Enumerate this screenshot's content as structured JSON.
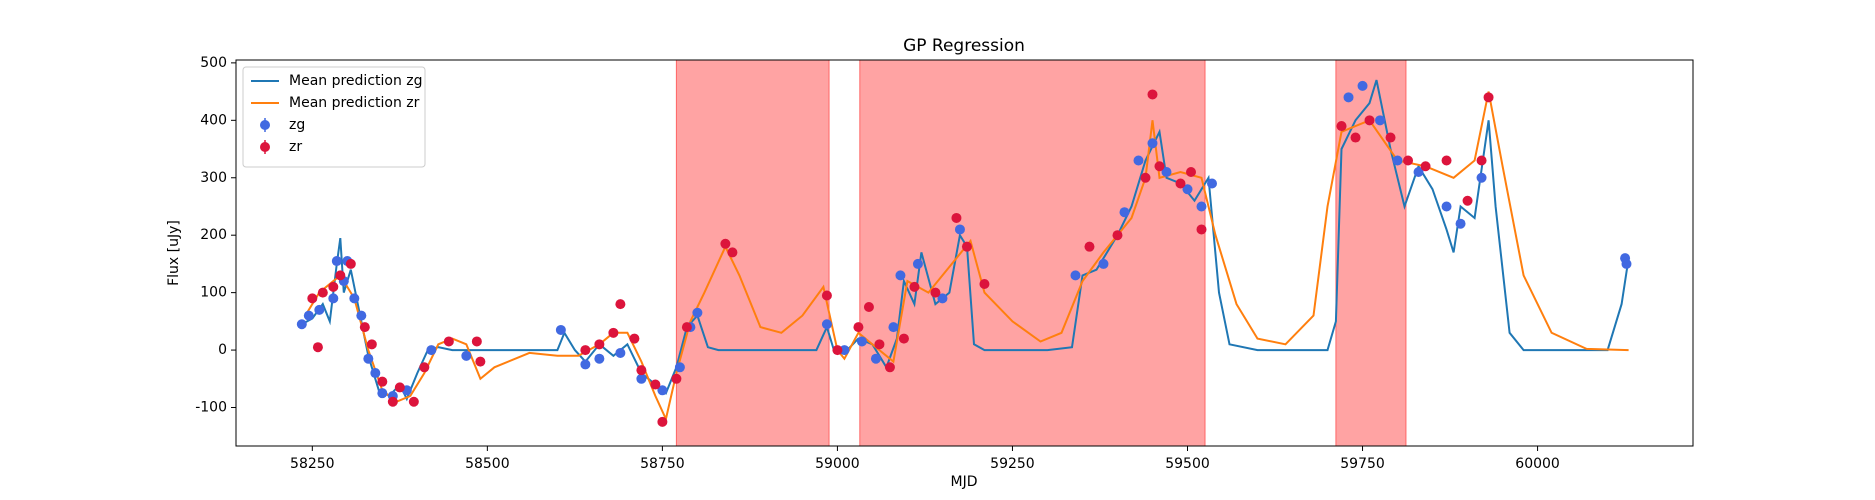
{
  "chart_data": {
    "type": "line",
    "title": "GP Regression",
    "x_label": "MJD",
    "y_label": "Flux [uJy]",
    "xlim": [
      58141,
      60222
    ],
    "ylim": [
      -167,
      505
    ],
    "xticks": [
      58250,
      58500,
      58750,
      59000,
      59250,
      59500,
      59750,
      60000
    ],
    "yticks": [
      -100,
      0,
      100,
      200,
      300,
      400,
      500
    ],
    "legend": "upper left",
    "shaded_regions": [
      [
        58770,
        58988
      ],
      [
        59032,
        59525
      ],
      [
        59712,
        59812
      ]
    ],
    "shade_color": "#ff6666",
    "series": [
      {
        "name": "Mean prediction zg",
        "kind": "line",
        "color": "#1f77b4",
        "x": [
          58235,
          58250,
          58265,
          58275,
          58285,
          58290,
          58295,
          58305,
          58315,
          58330,
          58345,
          58360,
          58375,
          58385,
          58400,
          58415,
          58430,
          58450,
          58480,
          58500,
          58600,
          58610,
          58625,
          58640,
          58660,
          58680,
          58700,
          58720,
          58740,
          58755,
          58770,
          58785,
          58800,
          58815,
          58830,
          58900,
          58970,
          58985,
          58995,
          59010,
          59030,
          59050,
          59070,
          59085,
          59095,
          59110,
          59120,
          59140,
          59160,
          59175,
          59185,
          59195,
          59210,
          59300,
          59335,
          59350,
          59370,
          59400,
          59420,
          59440,
          59460,
          59470,
          59490,
          59510,
          59530,
          59545,
          59560,
          59600,
          59700,
          59712,
          59720,
          59740,
          59760,
          59770,
          59790,
          59810,
          59830,
          59850,
          59870,
          59880,
          59890,
          59910,
          59930,
          59940,
          59960,
          59980,
          60100,
          60120,
          60130
        ],
        "values": [
          45,
          55,
          80,
          50,
          150,
          195,
          100,
          140,
          80,
          -10,
          -70,
          -80,
          -60,
          -85,
          -40,
          0,
          5,
          0,
          0,
          0,
          0,
          30,
          0,
          -20,
          10,
          -10,
          10,
          -40,
          -60,
          -75,
          -30,
          40,
          60,
          5,
          0,
          0,
          0,
          40,
          0,
          -5,
          20,
          10,
          -30,
          20,
          120,
          80,
          170,
          80,
          100,
          200,
          180,
          10,
          0,
          0,
          5,
          130,
          140,
          200,
          250,
          330,
          380,
          300,
          290,
          260,
          300,
          100,
          10,
          0,
          0,
          50,
          350,
          400,
          430,
          470,
          350,
          250,
          320,
          280,
          210,
          170,
          250,
          230,
          400,
          250,
          30,
          0,
          0,
          80,
          160
        ]
      },
      {
        "name": "Mean prediction zr",
        "kind": "line",
        "color": "#ff7f0e",
        "x": [
          58240,
          58260,
          58290,
          58310,
          58330,
          58350,
          58370,
          58390,
          58410,
          58430,
          58450,
          58470,
          58490,
          58510,
          58560,
          58600,
          58630,
          58660,
          58680,
          58700,
          58720,
          58740,
          58755,
          58770,
          58790,
          58810,
          58840,
          58860,
          58890,
          58920,
          58950,
          58980,
          59000,
          59010,
          59030,
          59060,
          59080,
          59100,
          59130,
          59170,
          59190,
          59210,
          59250,
          59290,
          59320,
          59350,
          59380,
          59420,
          59440,
          59450,
          59460,
          59490,
          59520,
          59540,
          59570,
          59600,
          59640,
          59680,
          59700,
          59720,
          59760,
          59800,
          59840,
          59880,
          59910,
          59930,
          59950,
          59980,
          60020,
          60070,
          60130
        ],
        "values": [
          60,
          100,
          130,
          90,
          0,
          -70,
          -90,
          -80,
          -40,
          10,
          20,
          10,
          -50,
          -30,
          -5,
          -10,
          -10,
          10,
          30,
          30,
          -20,
          -80,
          -120,
          -40,
          50,
          100,
          180,
          130,
          40,
          30,
          60,
          110,
          0,
          -15,
          30,
          0,
          -20,
          120,
          100,
          160,
          190,
          100,
          50,
          15,
          30,
          120,
          170,
          230,
          300,
          400,
          300,
          310,
          300,
          200,
          80,
          20,
          10,
          60,
          250,
          380,
          400,
          330,
          320,
          300,
          330,
          450,
          320,
          130,
          30,
          2,
          0
        ]
      },
      {
        "name": "zg",
        "kind": "scatter",
        "color": "#4169e1",
        "x": [
          58235,
          58245,
          58260,
          58280,
          58285,
          58295,
          58300,
          58310,
          58320,
          58330,
          58340,
          58350,
          58365,
          58385,
          58420,
          58470,
          58605,
          58640,
          58660,
          58690,
          58720,
          58750,
          58775,
          58790,
          58800,
          58985,
          59010,
          59035,
          59055,
          59080,
          59090,
          59115,
          59150,
          59175,
          59340,
          59380,
          59410,
          59430,
          59450,
          59470,
          59500,
          59520,
          59535,
          59730,
          59750,
          59775,
          59800,
          59830,
          59870,
          59890,
          59920,
          60125,
          60127
        ],
        "values": [
          45,
          60,
          70,
          90,
          155,
          120,
          155,
          90,
          60,
          -15,
          -40,
          -75,
          -80,
          -70,
          0,
          -10,
          35,
          -25,
          -15,
          -5,
          -50,
          -70,
          -30,
          40,
          65,
          45,
          0,
          15,
          -15,
          40,
          130,
          150,
          90,
          210,
          130,
          150,
          240,
          330,
          360,
          310,
          280,
          250,
          290,
          440,
          460,
          400,
          330,
          310,
          250,
          220,
          300,
          160,
          150
        ]
      },
      {
        "name": "zr",
        "kind": "scatter",
        "color": "#dc143c",
        "x": [
          58250,
          58258,
          58265,
          58280,
          58290,
          58305,
          58325,
          58335,
          58350,
          58365,
          58375,
          58395,
          58410,
          58445,
          58485,
          58490,
          58640,
          58660,
          58680,
          58690,
          58710,
          58720,
          58740,
          58750,
          58770,
          58785,
          58840,
          58850,
          58985,
          59000,
          59030,
          59045,
          59060,
          59075,
          59095,
          59110,
          59140,
          59170,
          59185,
          59210,
          59360,
          59400,
          59440,
          59450,
          59460,
          59490,
          59505,
          59520,
          59720,
          59740,
          59760,
          59790,
          59815,
          59840,
          59870,
          59900,
          59920,
          59930
        ],
        "values": [
          90,
          5,
          100,
          110,
          130,
          150,
          40,
          10,
          -55,
          -90,
          -65,
          -90,
          -30,
          15,
          15,
          -20,
          0,
          10,
          30,
          80,
          20,
          -35,
          -60,
          -125,
          -50,
          40,
          185,
          170,
          95,
          0,
          40,
          75,
          10,
          -30,
          20,
          110,
          100,
          230,
          180,
          115,
          180,
          200,
          300,
          445,
          320,
          290,
          310,
          210,
          390,
          370,
          400,
          370,
          330,
          320,
          330,
          260,
          330,
          440
        ]
      }
    ]
  }
}
